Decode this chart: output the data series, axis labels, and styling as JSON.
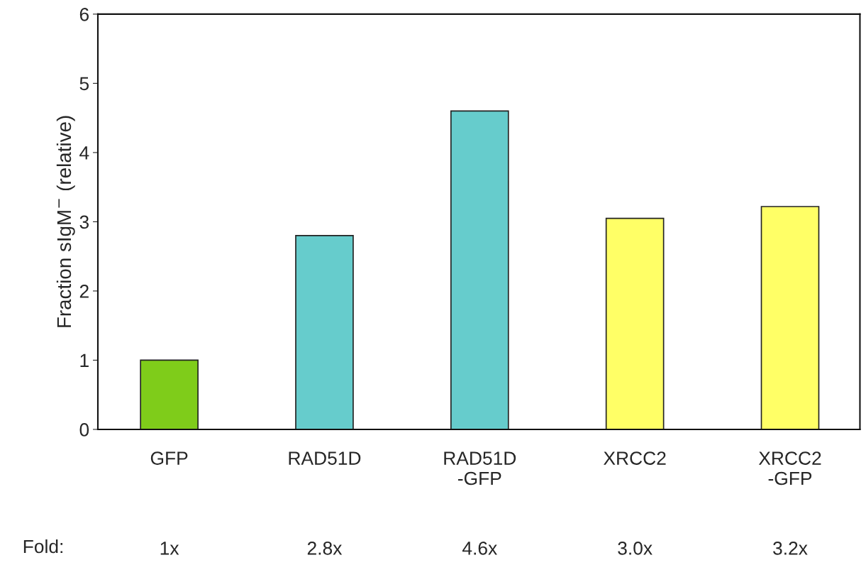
{
  "chart_data": {
    "type": "bar",
    "ylabel": "Fraction sIgM$^{−}$ (relative)",
    "categories": [
      "GFP",
      "RAD51D",
      "RAD51D\n-GFP",
      "XRCC2",
      "XRCC2\n-GFP"
    ],
    "values": [
      1.0,
      2.8,
      4.6,
      3.05,
      3.22
    ],
    "colors": [
      "#7fcc1a",
      "#66cccc",
      "#66cccc",
      "#ffff66",
      "#ffff66"
    ],
    "value_labels": [
      "1x",
      "2.8x",
      "4.6x",
      "3.0x",
      "3.2x"
    ],
    "annotations": [
      "Fold:"
    ],
    "ylim": [
      0,
      6
    ],
    "yticks": [
      0,
      1,
      2,
      3,
      4,
      5,
      6
    ],
    "grid": false,
    "legend": false
  }
}
